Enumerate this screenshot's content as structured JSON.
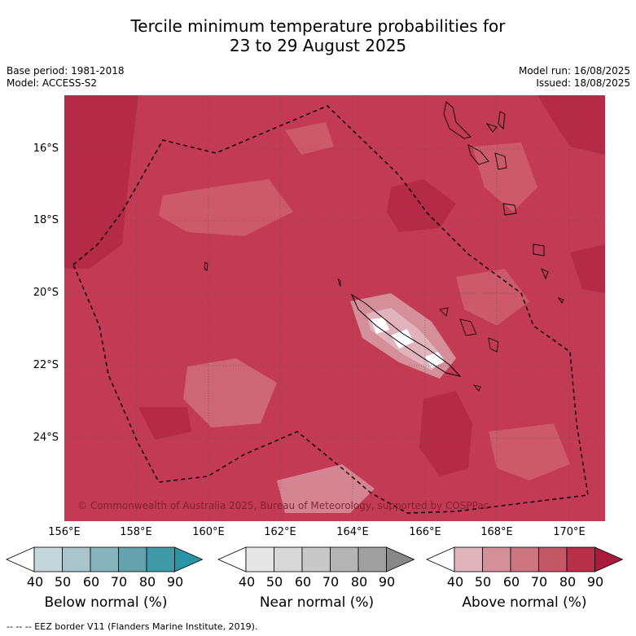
{
  "title_line1": "Tercile minimum temperature probabilities for",
  "title_line2": "23 to 29 August 2025",
  "base_period": "Base period: 1981-2018",
  "model": "Model: ACCESS-S2",
  "model_run": "Model run: 16/08/2025",
  "issued": "Issued: 18/08/2025",
  "copyright": "© Commonwealth of Australia 2025, Bureau of Meteorology, supported by COSPPac",
  "footer": "--  --  -- EEZ border V11 (Flanders Marine Institute, 2019).",
  "map": {
    "lat_labels": [
      "16°S",
      "18°S",
      "20°S",
      "22°S",
      "24°S"
    ],
    "lon_labels": [
      "156°E",
      "158°E",
      "160°E",
      "162°E",
      "164°E",
      "166°E",
      "168°E",
      "170°E"
    ],
    "dominant_category": "Above normal",
    "dominant_range_percent": [
      70,
      90
    ]
  },
  "colorbars": [
    {
      "title": "Below normal (%)",
      "ticks": [
        "40",
        "50",
        "60",
        "70",
        "80",
        "90"
      ],
      "colors": [
        "#ffffff",
        "#c4d6dc",
        "#a7c5cb",
        "#87b3bc",
        "#64a2ae",
        "#3f9aa8",
        "#2a93a4"
      ]
    },
    {
      "title": "Near normal (%)",
      "ticks": [
        "40",
        "50",
        "60",
        "70",
        "80",
        "90"
      ],
      "colors": [
        "#ffffff",
        "#e6e6e6",
        "#d8d8d8",
        "#c8c8c8",
        "#b4b4b4",
        "#a0a0a0",
        "#888888"
      ]
    },
    {
      "title": "Above normal (%)",
      "ticks": [
        "40",
        "50",
        "60",
        "70",
        "80",
        "90"
      ],
      "colors": [
        "#ffffff",
        "#e1b4bd",
        "#d58f99",
        "#cc747f",
        "#c25765",
        "#b83048",
        "#aa1a3a"
      ]
    }
  ]
}
